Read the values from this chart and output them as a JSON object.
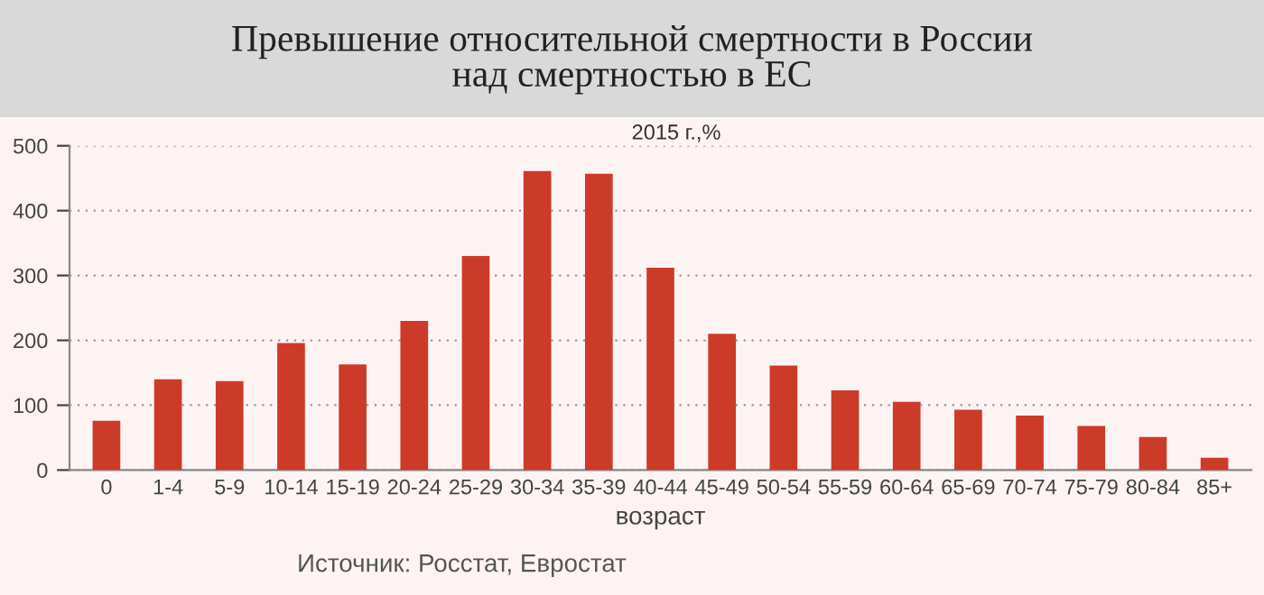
{
  "chart_data": {
    "type": "bar",
    "title": "Превышение относительной смертности в России\nнад смертностью в ЕС",
    "subtitle": "2015 г.,%",
    "xlabel": "возраст",
    "categories": [
      "0",
      "1-4",
      "5-9",
      "10-14",
      "15-19",
      "20-24",
      "25-29",
      "30-34",
      "35-39",
      "40-44",
      "45-49",
      "50-54",
      "55-59",
      "60-64",
      "65-69",
      "70-74",
      "75-79",
      "80-84",
      "85+"
    ],
    "values": [
      76,
      140,
      137,
      196,
      163,
      230,
      330,
      461,
      457,
      312,
      210,
      161,
      123,
      105,
      93,
      84,
      68,
      51,
      19
    ],
    "color": "#cc3a2a",
    "ylim": [
      0,
      500
    ],
    "yticks": [
      0,
      100,
      200,
      300,
      400,
      500
    ],
    "grid": "y",
    "annotations": [
      "Источник: Росстат, Евростат"
    ]
  }
}
